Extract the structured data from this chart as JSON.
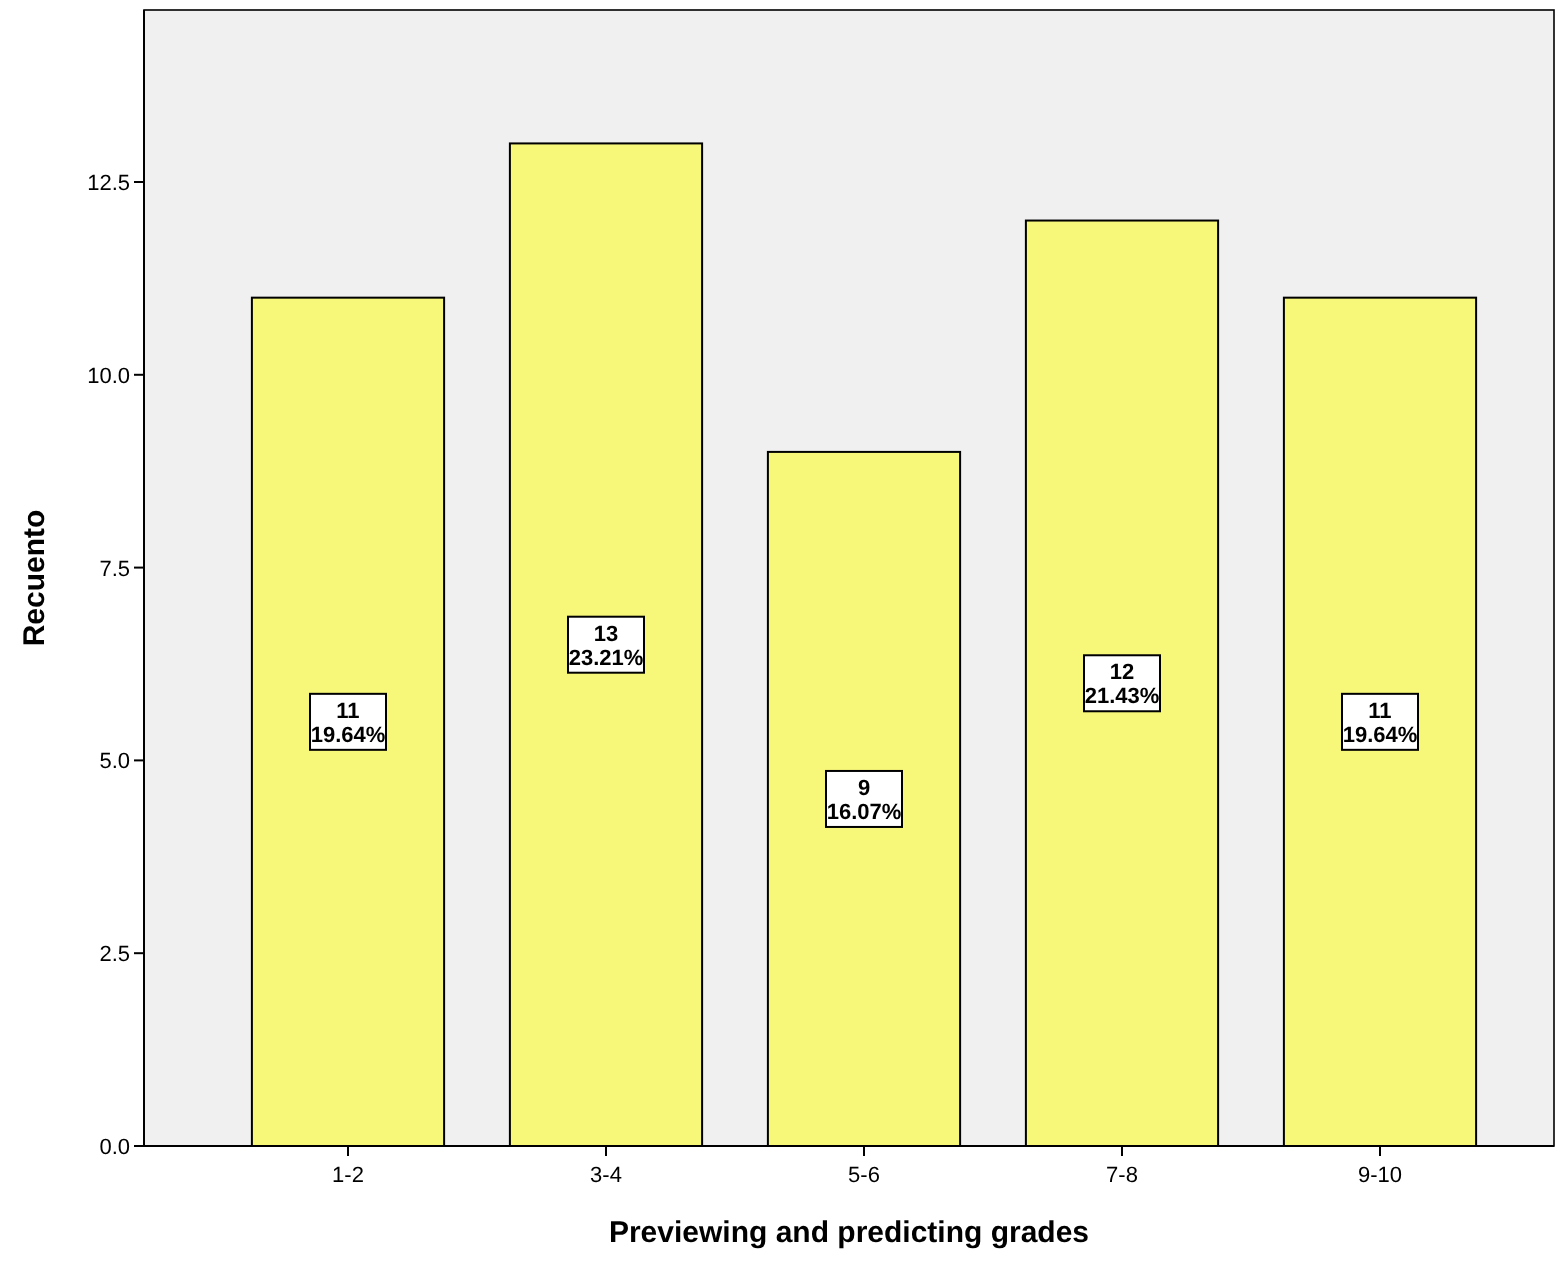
{
  "chart_data": {
    "type": "bar",
    "xlabel": "Previewing and predicting grades",
    "ylabel": "Recuento",
    "categories": [
      "1-2",
      "3-4",
      "5-6",
      "7-8",
      "9-10"
    ],
    "values": [
      11,
      13,
      9,
      12,
      11
    ],
    "value_labels": [
      "11\n19.64%",
      "13\n23.21%",
      "9\n16.07%",
      "12\n21.43%",
      "11\n19.64%"
    ],
    "color": "#f7f77a",
    "ylim": [
      0,
      14.73
    ],
    "yticks": [
      {
        "value": 0,
        "label": "0.0"
      },
      {
        "value": 2.5,
        "label": "2.5"
      },
      {
        "value": 5,
        "label": "5.0"
      },
      {
        "value": 7.5,
        "label": "7.5"
      },
      {
        "value": 10,
        "label": "10.0"
      },
      {
        "value": 12.5,
        "label": "12.5"
      }
    ],
    "grid": false
  }
}
